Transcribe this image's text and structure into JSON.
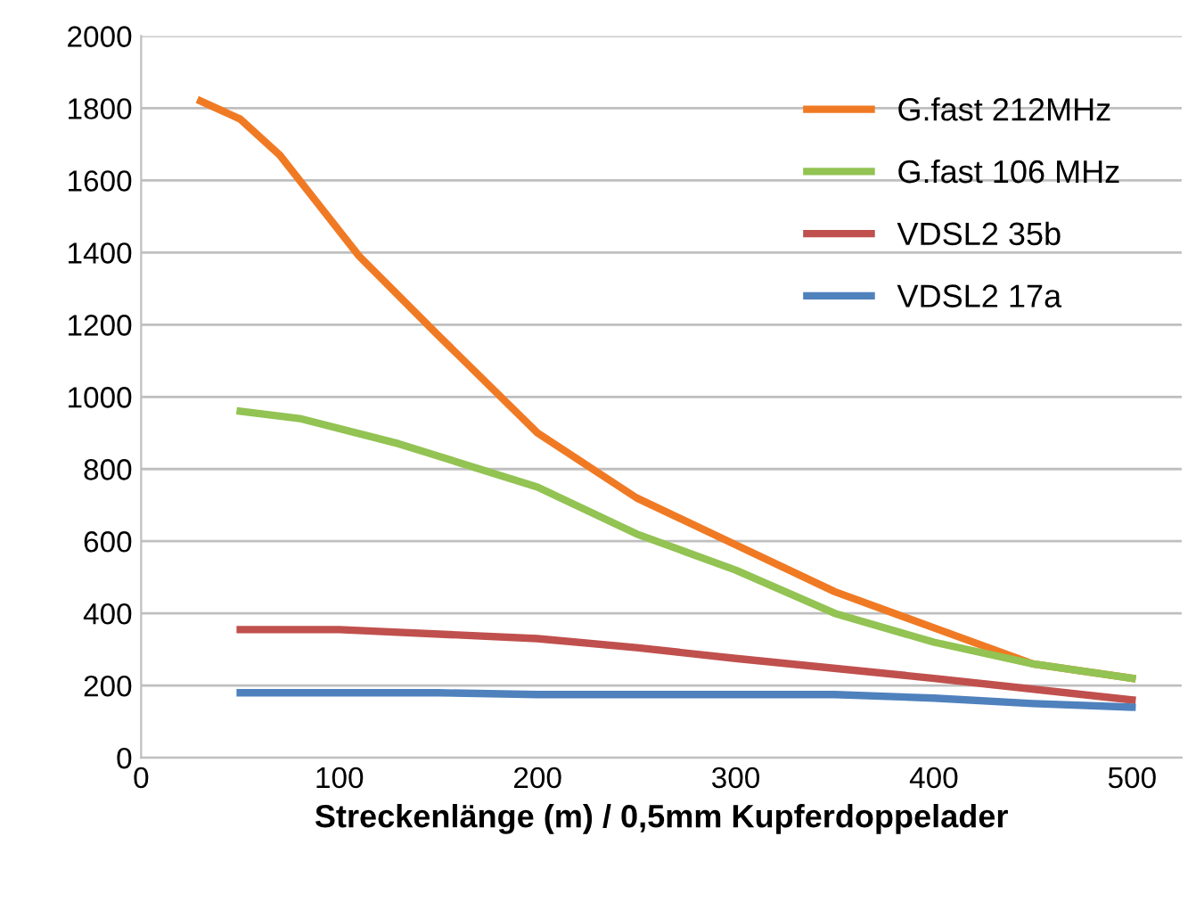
{
  "chart_data": {
    "type": "line",
    "xlabel": "Streckenlänge (m) / 0,5mm Kupferdoppelader",
    "xlim": [
      0,
      525
    ],
    "xticks": [
      0,
      100,
      200,
      300,
      400,
      500
    ],
    "ylim": [
      0,
      2000
    ],
    "yticks": [
      0,
      200,
      400,
      600,
      800,
      1000,
      1200,
      1400,
      1600,
      1800,
      2000
    ],
    "grid": "y",
    "legend": "top right",
    "marker": "none",
    "line_style": "solid",
    "series": [
      {
        "name": "G.fast 212MHz",
        "color": "#f07a24",
        "x": [
          30,
          50,
          70,
          90,
          110,
          150,
          200,
          250,
          300,
          350,
          400,
          450,
          500
        ],
        "values": [
          1820,
          1770,
          1670,
          1530,
          1390,
          1170,
          900,
          720,
          590,
          460,
          360,
          260,
          220
        ]
      },
      {
        "name": "G.fast 106 MHz",
        "color": "#92c353",
        "x": [
          50,
          80,
          130,
          200,
          250,
          300,
          350,
          400,
          450,
          500
        ],
        "values": [
          960,
          940,
          870,
          750,
          620,
          520,
          400,
          320,
          260,
          220
        ]
      },
      {
        "name": "VDSL2 35b",
        "color": "#c0504d",
        "x": [
          50,
          100,
          200,
          250,
          300,
          400,
          500
        ],
        "values": [
          355,
          355,
          330,
          305,
          275,
          220,
          160
        ]
      },
      {
        "name": "VDSL2 17a",
        "color": "#4f81bd",
        "x": [
          50,
          150,
          200,
          350,
          400,
          450,
          500
        ],
        "values": [
          180,
          180,
          175,
          175,
          165,
          150,
          140
        ]
      }
    ]
  }
}
